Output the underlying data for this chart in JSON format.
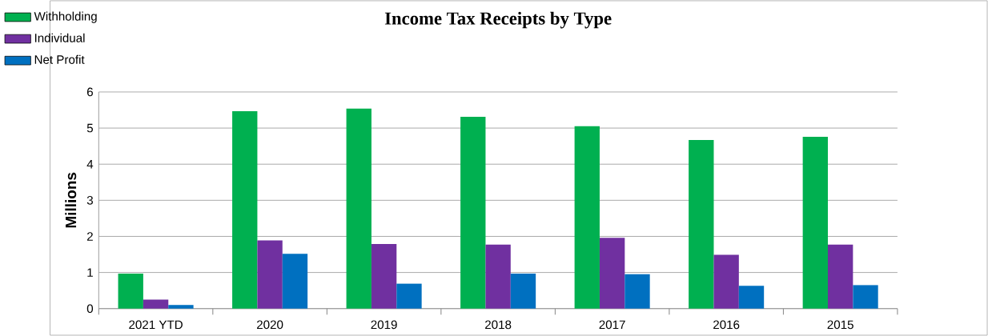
{
  "chart_data": {
    "type": "bar",
    "title": "Income Tax Receipts by Type",
    "ylabel": "Millions",
    "categories": [
      "2021 YTD",
      "2020",
      "2019",
      "2018",
      "2017",
      "2016",
      "2015"
    ],
    "series": [
      {
        "name": "Withholding",
        "color": "#00b050",
        "values": [
          0.97,
          5.47,
          5.54,
          5.31,
          5.05,
          4.67,
          4.76
        ]
      },
      {
        "name": "Individual",
        "color": "#7030a0",
        "values": [
          0.25,
          1.89,
          1.79,
          1.77,
          1.96,
          1.49,
          1.77
        ]
      },
      {
        "name": "Net Profit",
        "color": "#0070c0",
        "values": [
          0.1,
          1.52,
          0.69,
          0.97,
          0.95,
          0.63,
          0.65
        ]
      }
    ],
    "ylim": [
      0,
      6
    ],
    "yticks": [
      0,
      1,
      2,
      3,
      4,
      5,
      6
    ],
    "grid": "y",
    "legend": "top left"
  }
}
